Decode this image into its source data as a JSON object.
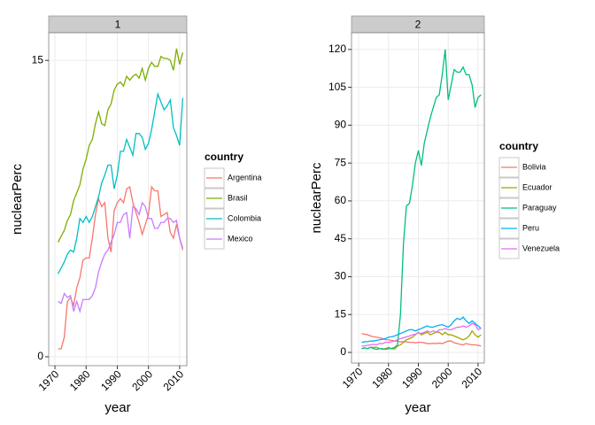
{
  "chart_data": [
    {
      "type": "line",
      "title": "1",
      "xlabel": "year",
      "ylabel": "nuclearPerc",
      "legend_title": "country",
      "x": [
        1971,
        1972,
        1973,
        1974,
        1975,
        1976,
        1977,
        1978,
        1979,
        1980,
        1981,
        1982,
        1983,
        1984,
        1985,
        1986,
        1987,
        1988,
        1989,
        1990,
        1991,
        1992,
        1993,
        1994,
        1995,
        1996,
        1997,
        1998,
        1999,
        2000,
        2001,
        2002,
        2003,
        2004,
        2005,
        2006,
        2007,
        2008,
        2009,
        2010,
        2011
      ],
      "xlim": [
        1968,
        2012.3
      ],
      "xticks": [
        1970,
        1980,
        1990,
        2000,
        2010
      ],
      "ylim": [
        -0.45,
        16.4
      ],
      "yticks": [
        0,
        15
      ],
      "grid": true,
      "series": [
        {
          "name": "Argentina",
          "color": "#F8766D",
          "values": [
            0.4,
            0.4,
            1.0,
            2.8,
            3.0,
            2.6,
            3.5,
            4.0,
            4.9,
            5.0,
            5.0,
            6.0,
            7.2,
            8.0,
            7.6,
            7.8,
            6.0,
            5.3,
            7.4,
            7.8,
            8.0,
            7.8,
            8.5,
            8.6,
            7.8,
            7.3,
            6.8,
            6.2,
            6.7,
            7.2,
            8.6,
            8.4,
            8.4,
            7.1,
            7.2,
            7.3,
            6.3,
            6.0,
            6.7,
            6.0,
            5.4
          ]
        },
        {
          "name": "Brasil",
          "color": "#7CAE00",
          "values": [
            5.8,
            6.1,
            6.4,
            6.9,
            7.2,
            7.9,
            8.3,
            8.7,
            9.5,
            10.0,
            10.7,
            11.0,
            11.8,
            12.4,
            11.8,
            11.7,
            12.5,
            12.8,
            13.5,
            13.8,
            13.9,
            13.7,
            14.2,
            14.0,
            14.2,
            14.3,
            14.1,
            14.6,
            14.0,
            14.6,
            14.9,
            14.7,
            14.7,
            15.2,
            15.1,
            15.1,
            15.0,
            14.5,
            15.6,
            14.8,
            15.4
          ]
        },
        {
          "name": "Colombia",
          "color": "#00BFC4",
          "values": [
            4.2,
            4.5,
            4.8,
            5.2,
            5.4,
            5.3,
            6.0,
            7.0,
            6.8,
            7.1,
            6.8,
            7.1,
            7.6,
            8.1,
            8.8,
            9.2,
            9.7,
            9.7,
            8.5,
            9.2,
            10.4,
            10.4,
            11.0,
            10.6,
            10.2,
            11.3,
            11.3,
            11.1,
            10.5,
            10.8,
            11.5,
            12.4,
            13.3,
            12.9,
            12.5,
            12.7,
            13.0,
            11.6,
            11.2,
            10.7,
            13.1
          ]
        },
        {
          "name": "Mexico",
          "color": "#C77CFF",
          "values": [
            2.8,
            2.7,
            3.2,
            3.0,
            3.1,
            2.3,
            2.8,
            2.3,
            2.9,
            2.9,
            2.9,
            3.1,
            3.5,
            4.3,
            4.8,
            5.2,
            5.4,
            5.8,
            6.2,
            6.8,
            6.8,
            7.2,
            7.3,
            6.0,
            7.6,
            7.5,
            7.2,
            7.8,
            7.6,
            7.0,
            7.0,
            6.5,
            6.5,
            6.8,
            6.8,
            7.0,
            7.0,
            6.8,
            6.9,
            6.0,
            5.5
          ]
        }
      ]
    },
    {
      "type": "line",
      "title": "2",
      "xlabel": "year",
      "ylabel": "nuclearPerc",
      "legend_title": "country",
      "x": [
        1971,
        1972,
        1973,
        1974,
        1975,
        1976,
        1977,
        1978,
        1979,
        1980,
        1981,
        1982,
        1983,
        1984,
        1985,
        1986,
        1987,
        1988,
        1989,
        1990,
        1991,
        1992,
        1993,
        1994,
        1995,
        1996,
        1997,
        1998,
        1999,
        2000,
        2001,
        2002,
        2003,
        2004,
        2005,
        2006,
        2007,
        2008,
        2009,
        2010,
        2011
      ],
      "xlim": [
        1967.6,
        2012.1
      ],
      "xticks": [
        1970,
        1980,
        1990,
        2000,
        2010
      ],
      "ylim": [
        -4.2,
        126.6
      ],
      "yticks": [
        0,
        15,
        30,
        45,
        60,
        75,
        90,
        105,
        120
      ],
      "grid": true,
      "series": [
        {
          "name": "Bolivia",
          "color": "#F8766D",
          "values": [
            7.5,
            7.2,
            7,
            6.5,
            6.2,
            6,
            5.8,
            5.5,
            5,
            5,
            4.8,
            4.5,
            4.5,
            4.2,
            4.3,
            4.2,
            4,
            4,
            3.8,
            4,
            4,
            3.8,
            3.5,
            3.5,
            3.6,
            3.5,
            3.7,
            3.5,
            4,
            4.5,
            4.5,
            3.8,
            3.5,
            3.2,
            3,
            3.5,
            3.2,
            3,
            3,
            2.8,
            2.5
          ]
        },
        {
          "name": "Ecuador",
          "color": "#A3A500",
          "values": [
            1.5,
            1.8,
            1.5,
            2,
            2,
            2,
            1.5,
            1.3,
            1.5,
            2,
            1.5,
            1.3,
            2.5,
            3,
            4,
            5,
            5.5,
            6,
            7,
            8,
            7,
            7.5,
            8,
            7,
            7.5,
            8,
            8,
            7,
            8,
            7,
            7,
            6.5,
            6,
            5.5,
            5,
            5.5,
            6.5,
            8.5,
            7,
            6,
            7
          ]
        },
        {
          "name": "Paraguay",
          "color": "#00BF7D",
          "values": [
            1.5,
            1.8,
            1.5,
            2,
            1.5,
            1.2,
            1.5,
            1.5,
            1.2,
            1.5,
            1.5,
            2,
            3,
            15,
            43,
            58,
            59,
            66,
            75,
            80,
            74,
            83,
            88,
            93,
            97,
            101,
            102,
            110,
            120,
            100,
            106,
            112,
            111,
            111,
            113,
            110,
            110,
            106,
            97,
            101,
            102
          ]
        },
        {
          "name": "Peru",
          "color": "#00B0F6",
          "values": [
            4,
            4.2,
            4.3,
            4.5,
            4.5,
            4.8,
            5,
            5.2,
            5.5,
            6,
            6.2,
            6.5,
            7,
            7.5,
            8,
            8.5,
            9,
            9,
            8.5,
            9,
            9.5,
            10,
            10.5,
            10,
            10,
            10.5,
            10.8,
            11,
            10.5,
            10,
            11,
            12.5,
            13.5,
            13,
            14,
            12.5,
            11.5,
            12.5,
            11.5,
            10.5,
            9.5
          ]
        },
        {
          "name": "Venezuela",
          "color": "#E76BF3",
          "values": [
            2.5,
            2.6,
            2.8,
            3,
            3.2,
            3,
            3.5,
            3.5,
            4,
            4,
            4.2,
            4.5,
            5,
            5.5,
            5.8,
            6.2,
            6.5,
            7,
            7.2,
            7.8,
            7.5,
            8,
            8.5,
            8,
            8.5,
            8,
            9,
            9,
            9.5,
            9,
            9,
            9.5,
            10,
            10,
            10.5,
            10,
            10.5,
            11.5,
            11,
            9,
            9.5
          ]
        }
      ]
    }
  ]
}
